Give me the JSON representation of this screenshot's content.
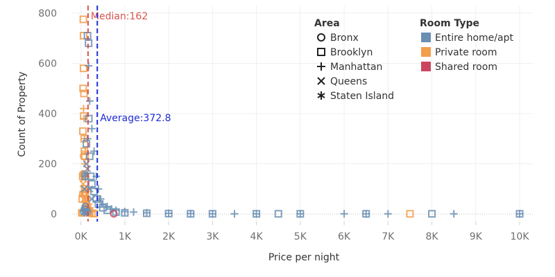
{
  "chart_data": {
    "type": "scatter",
    "xlabel": "Price per night",
    "ylabel": "Count of Property",
    "xlim": [
      -200,
      10300
    ],
    "ylim": [
      -30,
      830
    ],
    "x_ticks": [
      0,
      1000,
      2000,
      3000,
      4000,
      5000,
      6000,
      7000,
      8000,
      9000,
      10000
    ],
    "x_tick_labels": [
      "0K",
      "1K",
      "2K",
      "3K",
      "4K",
      "5K",
      "6K",
      "7K",
      "8K",
      "9K",
      "10K"
    ],
    "y_ticks": [
      0,
      200,
      400,
      600,
      800
    ],
    "y_tick_labels": [
      "0",
      "200",
      "400",
      "600",
      "800"
    ],
    "grid": true,
    "reference_lines": [
      {
        "label": "Median:162",
        "value": 162,
        "color": "#d9534f"
      },
      {
        "label": "Average:372.8",
        "value": 372.8,
        "color": "#1f2bd6"
      }
    ],
    "legend_placement": "top-right",
    "legend": {
      "shape_title": "Area",
      "shapes": [
        {
          "name": "Bronx",
          "icon": "circle"
        },
        {
          "name": "Brooklyn",
          "icon": "square"
        },
        {
          "name": "Manhattan",
          "icon": "plus"
        },
        {
          "name": "Queens",
          "icon": "cross"
        },
        {
          "name": "Staten Island",
          "icon": "asterisk"
        }
      ],
      "color_title": "Room Type",
      "colors": [
        {
          "name": "Entire home/apt",
          "color": "#6a8fb3"
        },
        {
          "name": "Private room",
          "color": "#f29e4c"
        },
        {
          "name": "Shared room",
          "color": "#c9465e"
        }
      ]
    },
    "series": [
      {
        "room_type": "Private room",
        "area": "Brooklyn",
        "x": [
          20,
          30,
          40,
          45,
          50,
          55,
          60,
          60,
          65,
          70,
          75,
          80,
          85,
          90,
          95,
          100,
          110,
          120,
          130,
          150,
          175,
          200,
          250,
          300,
          7500
        ],
        "y": [
          5,
          60,
          150,
          330,
          500,
          775,
          710,
          580,
          390,
          480,
          300,
          250,
          150,
          100,
          230,
          80,
          60,
          40,
          30,
          20,
          10,
          5,
          3,
          2,
          1
        ]
      },
      {
        "room_type": "Private room",
        "area": "Manhattan",
        "x": [
          50,
          60,
          70,
          80,
          90,
          100,
          110,
          120,
          130,
          150,
          175,
          200,
          250
        ],
        "y": [
          150,
          420,
          380,
          300,
          200,
          250,
          150,
          100,
          90,
          60,
          40,
          25,
          10
        ]
      },
      {
        "room_type": "Private room",
        "area": "Queens",
        "x": [
          40,
          50,
          60,
          70,
          80,
          90
        ],
        "y": [
          80,
          120,
          140,
          100,
          60,
          40
        ]
      },
      {
        "room_type": "Private room",
        "area": "Bronx",
        "x": [
          30,
          40,
          50,
          60,
          70,
          80,
          90
        ],
        "y": [
          5,
          80,
          160,
          230,
          160,
          80,
          20
        ]
      },
      {
        "room_type": "Entire home/apt",
        "area": "Brooklyn",
        "x": [
          100,
          125,
          150,
          175,
          180,
          200,
          225,
          250,
          300,
          350,
          400,
          500,
          600,
          800,
          1000,
          1500,
          2000,
          2500,
          3000,
          4000,
          4500,
          5000,
          6500,
          8000,
          10000
        ],
        "y": [
          150,
          280,
          710,
          680,
          380,
          230,
          150,
          120,
          90,
          60,
          40,
          25,
          15,
          8,
          5,
          3,
          2,
          1,
          1,
          1,
          1,
          1,
          1,
          1,
          1
        ]
      },
      {
        "room_type": "Entire home/apt",
        "area": "Manhattan",
        "x": [
          100,
          150,
          175,
          200,
          250,
          300,
          350,
          400,
          450,
          500,
          600,
          700,
          800,
          1000,
          1200,
          1500,
          2000,
          2500,
          3000,
          3500,
          4000,
          5000,
          6000,
          6500,
          7000,
          8500,
          10000
        ],
        "y": [
          150,
          300,
          590,
          450,
          340,
          250,
          150,
          100,
          60,
          40,
          30,
          20,
          15,
          10,
          8,
          5,
          3,
          2,
          1,
          1,
          1,
          1,
          1,
          1,
          1,
          1,
          1
        ]
      },
      {
        "room_type": "Entire home/apt",
        "area": "Queens",
        "x": [
          80,
          100,
          125,
          150,
          200,
          250
        ],
        "y": [
          100,
          160,
          200,
          180,
          100,
          60
        ]
      },
      {
        "room_type": "Entire home/apt",
        "area": "Bronx",
        "x": [
          60,
          80,
          100,
          120,
          150
        ],
        "y": [
          10,
          20,
          30,
          20,
          10
        ]
      },
      {
        "room_type": "Entire home/apt",
        "area": "Staten Island",
        "x": [
          70,
          100,
          130
        ],
        "y": [
          5,
          10,
          5
        ]
      },
      {
        "room_type": "Shared room",
        "area": "Bronx",
        "x": [
          750
        ],
        "y": [
          1
        ]
      }
    ]
  }
}
